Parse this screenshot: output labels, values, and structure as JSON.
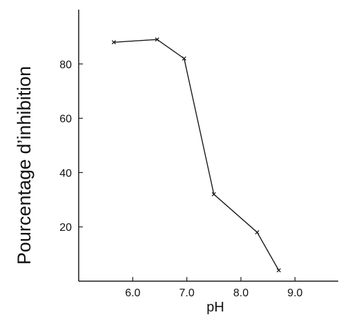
{
  "chart_data": {
    "type": "line",
    "title": "",
    "xlabel": "pH",
    "ylabel": "Pourcentage d’inhibition",
    "xlim": [
      5.0,
      9.8
    ],
    "ylim": [
      0,
      100
    ],
    "x_ticks": [
      6.0,
      7.0,
      8.0,
      9.0
    ],
    "x_tick_labels": [
      "6.0",
      "7.0",
      "8.0",
      "9.0"
    ],
    "y_ticks": [
      20,
      40,
      60,
      80
    ],
    "y_tick_labels": [
      "20",
      "40",
      "60",
      "80"
    ],
    "grid": false,
    "legend": "none",
    "marker": "x",
    "line_color": "#1a1a1a",
    "series": [
      {
        "x": [
          5.65,
          6.45,
          6.95,
          7.5,
          8.3,
          8.7
        ],
        "y": [
          88,
          89,
          82,
          32,
          18,
          4
        ]
      }
    ]
  }
}
